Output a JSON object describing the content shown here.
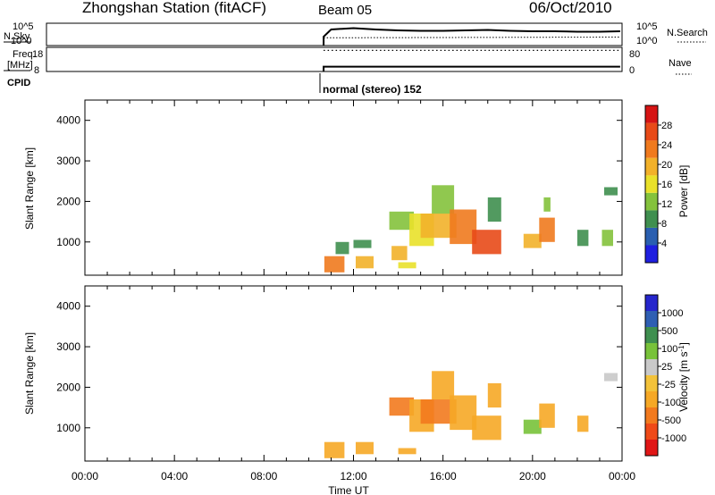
{
  "header": {
    "station": "Zhongshan Station (fitACF)",
    "beam": "Beam 05",
    "date": "06/Oct/2010"
  },
  "left_labels": {
    "nsky": "N.Sky",
    "freq": "Freq.",
    "freq_unit": "[MHz]",
    "cpid": "CPID"
  },
  "right_labels": {
    "nsearch": "N.Search",
    "nave": "Nave"
  },
  "mode_label": "normal (stereo) 152",
  "colors": {
    "power": [
      "#1f1fe0",
      "#2a5fb0",
      "#3f8f4f",
      "#84c23c",
      "#e9e12a",
      "#f2b12a",
      "#f07a1e",
      "#e84a18",
      "#d61414"
    ],
    "velocity": [
      "#e01616",
      "#ef4a18",
      "#f27a1e",
      "#f6a826",
      "#f3c23a",
      "#c9c9c9",
      "#78c23a",
      "#3f8f4f",
      "#2f5fb3",
      "#2626cc"
    ]
  },
  "chart_data": [
    {
      "type": "line",
      "name": "noise-panel",
      "ylabel_left": "N.Sky",
      "ylabel_right": "N.Search",
      "yticks_left": [
        "10^5",
        "10^0"
      ],
      "yticks_right": [
        "10^5",
        "10^0"
      ],
      "series": [
        {
          "name": "N.Sky",
          "x": [
            "10:40",
            "11:00",
            "12:00",
            "13:00",
            "14:00",
            "15:00",
            "16:00",
            "17:00",
            "18:00",
            "19:00",
            "20:00",
            "21:00",
            "22:00",
            "23:00",
            "23:55"
          ],
          "values": [
            0.4,
            0.72,
            0.78,
            0.72,
            0.68,
            0.66,
            0.66,
            0.68,
            0.7,
            0.66,
            0.64,
            0.64,
            0.62,
            0.62,
            0.64
          ]
        },
        {
          "name": "N.Search",
          "x": [
            "10:40",
            "23:55"
          ],
          "values": [
            0.35,
            0.38
          ]
        }
      ]
    },
    {
      "type": "line",
      "name": "frequency-panel",
      "ylabel_left": "Freq. [MHz]",
      "ylabel_right": "Nave",
      "yticks_left": [
        "18",
        "8"
      ],
      "yticks_right": [
        "80",
        "0"
      ],
      "series": [
        {
          "name": "Freq.",
          "x": [
            "10:40",
            "23:55"
          ],
          "values": [
            10,
            10
          ]
        },
        {
          "name": "Nave",
          "x": [
            "10:40",
            "23:55"
          ],
          "values": [
            70,
            70
          ]
        }
      ]
    },
    {
      "type": "heatmap",
      "name": "power-panel",
      "xlabel": "Time UT",
      "ylabel": "Slant Range [km]",
      "yticks": [
        1000,
        2000,
        3000,
        4000
      ],
      "ylim": [
        180,
        4500
      ],
      "colorbar_label": "Power [dB]",
      "colorbar_ticks": [
        "4",
        "8",
        "12",
        "16",
        "20",
        "24",
        "28"
      ],
      "cells": [
        {
          "t0": 10.7,
          "t1": 11.6,
          "r0": 250,
          "r1": 650,
          "v": 26
        },
        {
          "t0": 11.2,
          "t1": 11.8,
          "r0": 700,
          "r1": 1000,
          "v": 8
        },
        {
          "t0": 12.1,
          "t1": 12.9,
          "r0": 350,
          "r1": 650,
          "v": 20
        },
        {
          "t0": 12.0,
          "t1": 12.8,
          "r0": 850,
          "r1": 1050,
          "v": 8
        },
        {
          "t0": 13.6,
          "t1": 14.7,
          "r0": 1300,
          "r1": 1750,
          "v": 14
        },
        {
          "t0": 13.7,
          "t1": 14.4,
          "r0": 550,
          "r1": 900,
          "v": 22
        },
        {
          "t0": 14.0,
          "t1": 14.8,
          "r0": 350,
          "r1": 500,
          "v": 18
        },
        {
          "t0": 14.5,
          "t1": 15.6,
          "r0": 900,
          "r1": 1700,
          "v": 18
        },
        {
          "t0": 15.0,
          "t1": 16.6,
          "r0": 1100,
          "r1": 1700,
          "v": 22
        },
        {
          "t0": 15.5,
          "t1": 16.5,
          "r0": 1700,
          "r1": 2400,
          "v": 12
        },
        {
          "t0": 16.3,
          "t1": 17.5,
          "r0": 950,
          "r1": 1800,
          "v": 24
        },
        {
          "t0": 17.3,
          "t1": 18.6,
          "r0": 700,
          "r1": 1300,
          "v": 28
        },
        {
          "t0": 18.0,
          "t1": 18.6,
          "r0": 1500,
          "r1": 2100,
          "v": 10
        },
        {
          "t0": 19.6,
          "t1": 20.4,
          "r0": 850,
          "r1": 1200,
          "v": 20
        },
        {
          "t0": 20.3,
          "t1": 21.0,
          "r0": 1000,
          "r1": 1600,
          "v": 24
        },
        {
          "t0": 20.5,
          "t1": 20.8,
          "r0": 1750,
          "r1": 2100,
          "v": 12
        },
        {
          "t0": 22.0,
          "t1": 22.5,
          "r0": 900,
          "r1": 1300,
          "v": 8
        },
        {
          "t0": 23.2,
          "t1": 23.8,
          "r0": 2150,
          "r1": 2350,
          "v": 8
        },
        {
          "t0": 23.1,
          "t1": 23.6,
          "r0": 900,
          "r1": 1300,
          "v": 12
        }
      ]
    },
    {
      "type": "heatmap",
      "name": "velocity-panel",
      "xlabel": "Time UT",
      "ylabel": "Slant Range [km]",
      "yticks": [
        1000,
        2000,
        3000,
        4000
      ],
      "ylim": [
        180,
        4500
      ],
      "colorbar_label": "Velocity [m s^-1]",
      "colorbar_ticks": [
        "-1000",
        "-500",
        "-100",
        "-25",
        "25",
        "100",
        "500",
        "1000"
      ],
      "cells": [
        {
          "t0": 10.7,
          "t1": 11.6,
          "r0": 250,
          "r1": 650,
          "v": -100
        },
        {
          "t0": 12.1,
          "t1": 12.9,
          "r0": 350,
          "r1": 650,
          "v": -100
        },
        {
          "t0": 13.6,
          "t1": 14.7,
          "r0": 1300,
          "r1": 1750,
          "v": -500
        },
        {
          "t0": 14.0,
          "t1": 14.8,
          "r0": 350,
          "r1": 500,
          "v": -100
        },
        {
          "t0": 14.5,
          "t1": 15.6,
          "r0": 900,
          "r1": 1700,
          "v": -100
        },
        {
          "t0": 15.0,
          "t1": 16.6,
          "r0": 1100,
          "r1": 1700,
          "v": -500
        },
        {
          "t0": 15.5,
          "t1": 16.5,
          "r0": 1700,
          "r1": 2400,
          "v": -100
        },
        {
          "t0": 16.3,
          "t1": 17.5,
          "r0": 950,
          "r1": 1800,
          "v": -100
        },
        {
          "t0": 17.3,
          "t1": 18.6,
          "r0": 700,
          "r1": 1300,
          "v": -100
        },
        {
          "t0": 18.0,
          "t1": 18.6,
          "r0": 1500,
          "r1": 2100,
          "v": -100
        },
        {
          "t0": 19.6,
          "t1": 20.4,
          "r0": 850,
          "r1": 1200,
          "v": 100
        },
        {
          "t0": 20.3,
          "t1": 21.0,
          "r0": 1000,
          "r1": 1600,
          "v": -100
        },
        {
          "t0": 23.2,
          "t1": 23.8,
          "r0": 2150,
          "r1": 2350,
          "v": 0
        },
        {
          "t0": 22.0,
          "t1": 22.5,
          "r0": 900,
          "r1": 1300,
          "v": -100
        }
      ]
    }
  ],
  "x_axis": {
    "label": "Time UT",
    "ticks": [
      "00:00",
      "04:00",
      "08:00",
      "12:00",
      "16:00",
      "20:00",
      "00:00"
    ],
    "range_hours": [
      0,
      24
    ]
  }
}
